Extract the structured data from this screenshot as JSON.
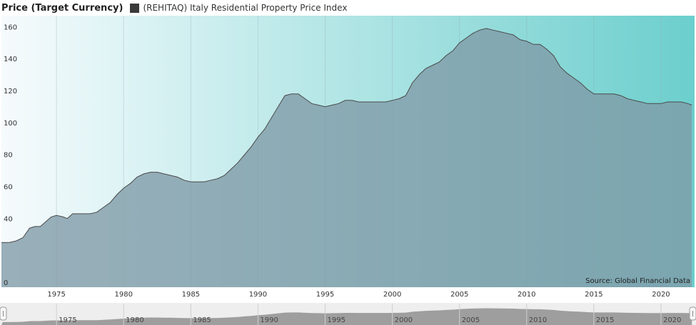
{
  "legend": {
    "title": "Price (Target Currency)",
    "series_label": "(REHITAQ) Italy Residential Property Price Index"
  },
  "source": "Source: Global Financial Data",
  "colors": {
    "area_fill": "#7f9aa6",
    "line": "#4a4a4a",
    "bg_left": "#f6fbfd",
    "bg_right": "#6ccfcd",
    "navigator_fill": "#8a8a8a"
  },
  "chart_data": {
    "type": "area",
    "title": "",
    "xlabel": "",
    "ylabel": "",
    "ylim": [
      0,
      170
    ],
    "xlim": [
      1970.9,
      2022.5
    ],
    "y_ticks": [
      0,
      40,
      60,
      80,
      100,
      120,
      140,
      160
    ],
    "x_ticks": [
      1975,
      1980,
      1985,
      1990,
      1995,
      2000,
      2005,
      2010,
      2015,
      2020
    ],
    "series": [
      {
        "x": [
          1971.0,
          1971.5,
          1972.0,
          1972.5,
          1973.0,
          1973.4,
          1973.8,
          1974.2,
          1974.6,
          1975.0,
          1975.5,
          1975.8,
          1976.2,
          1976.6,
          1977.0,
          1977.5,
          1978.0,
          1978.5,
          1979.0,
          1979.5,
          1980.0,
          1980.5,
          1981.0,
          1981.5,
          1982.0,
          1982.5,
          1983.0,
          1983.5,
          1984.0,
          1984.5,
          1985.0,
          1985.5,
          1986.0,
          1986.5,
          1987.0,
          1987.5,
          1988.0,
          1988.5,
          1989.0,
          1989.5,
          1990.0,
          1990.5,
          1991.0,
          1991.5,
          1992.0,
          1992.5,
          1993.0,
          1993.5,
          1994.0,
          1994.5,
          1995.0,
          1995.5,
          1996.0,
          1996.5,
          1997.0,
          1997.5,
          1998.0,
          1998.5,
          1999.0,
          1999.5,
          2000.0,
          2000.5,
          2001.0,
          2001.5,
          2002.0,
          2002.5,
          2003.0,
          2003.5,
          2004.0,
          2004.5,
          2005.0,
          2005.5,
          2006.0,
          2006.5,
          2007.0,
          2007.5,
          2008.0,
          2008.5,
          2009.0,
          2009.5,
          2010.0,
          2010.5,
          2011.0,
          2011.5,
          2012.0,
          2012.5,
          2013.0,
          2013.5,
          2014.0,
          2014.5,
          2015.0,
          2015.5,
          2016.0,
          2016.5,
          2017.0,
          2017.5,
          2018.0,
          2018.5,
          2019.0,
          2019.5,
          2020.0,
          2020.5,
          2021.0,
          2021.5,
          2022.0,
          2022.3
        ],
        "y": [
          28,
          28,
          29,
          31,
          37,
          38,
          38,
          41,
          44,
          45,
          44,
          43,
          46,
          46,
          46,
          46,
          47,
          50,
          53,
          58,
          62,
          65,
          69,
          71,
          72,
          72,
          71,
          70,
          69,
          67,
          66,
          66,
          66,
          67,
          68,
          70,
          74,
          78,
          83,
          88,
          94,
          99,
          106,
          113,
          120,
          121,
          121,
          118,
          115,
          114,
          113,
          114,
          115,
          117,
          117,
          116,
          116,
          116,
          116,
          116,
          117,
          118,
          120,
          128,
          133,
          137,
          139,
          141,
          145,
          148,
          153,
          156,
          159,
          161,
          162,
          161,
          160,
          159,
          158,
          155,
          154,
          152,
          152,
          149,
          145,
          138,
          134,
          131,
          128,
          124,
          121,
          121,
          121,
          121,
          120,
          118,
          117,
          116,
          115,
          115,
          115,
          116,
          116,
          116,
          115,
          114
        ]
      }
    ]
  }
}
